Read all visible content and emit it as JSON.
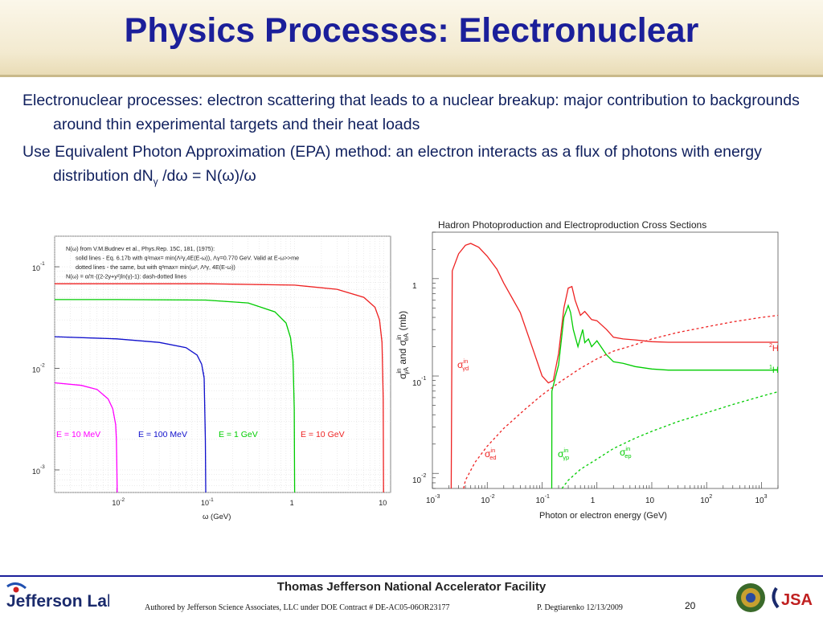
{
  "slide": {
    "title": "Physics Processes: Electronuclear",
    "bullets": [
      {
        "line1": "Electronuclear processes:  electron scattering that leads to a nuclear breakup: major contribution to backgrounds around thin experimental targets and their heat loads"
      },
      {
        "prefix": "Use Equivalent Photon Approximation (EPA) method: an electron interacts as a flux of photons with energy distribution dN",
        "sub": "γ",
        "suffix": " /dω = N(ω)/ω"
      }
    ]
  },
  "chart_data": [
    {
      "type": "line",
      "xlabel": "ω (GeV)",
      "x_log": true,
      "y_log": true,
      "xlim": [
        0.002,
        12
      ],
      "ylim": [
        0.0006,
        0.2
      ],
      "x_ticks": [
        {
          "value": 0.01,
          "base": "10",
          "exp": "-2"
        },
        {
          "value": 0.1,
          "base": "10",
          "exp": "-1"
        },
        {
          "value": 1,
          "base": "1",
          "exp": ""
        },
        {
          "value": 10,
          "base": "10",
          "exp": ""
        }
      ],
      "y_ticks": [
        {
          "value": 0.1,
          "base": "10",
          "exp": "-1"
        },
        {
          "value": 0.01,
          "base": "10",
          "exp": "-2"
        },
        {
          "value": 0.001,
          "base": "10",
          "exp": "-3"
        }
      ],
      "annotation_lines": [
        "N(ω) from V.M.Budnev et al., Phys.Rep. 15C, 181, (1975):",
        "solid lines    - Eq. 6.17b with q²max= min(Λ²γ,4E(E-ω)), Λγ=0.770 GeV. Valid at E-ω>>me",
        "dotted lines   - the same, but with q²max= min(ω², Λ²γ, 4E(E-ω))",
        "N(ω) = α/π·((2-2y+y²)ln(γ)-1): dash-dotted lines"
      ],
      "series": [
        {
          "name": "E = 10 MeV",
          "color": "#ff00ff",
          "level": 0.0075,
          "cutoff": 0.0095,
          "x": [
            0.002,
            0.004,
            0.006,
            0.008,
            0.009,
            0.0097,
            0.0099,
            0.01,
            0.0101
          ],
          "y": [
            0.0072,
            0.0068,
            0.0062,
            0.005,
            0.004,
            0.0028,
            0.002,
            0.0012,
            0.0006
          ]
        },
        {
          "name": "E = 100 MeV",
          "color": "#1010cc",
          "level": 0.0205,
          "cutoff": 0.098,
          "x": [
            0.002,
            0.01,
            0.03,
            0.06,
            0.08,
            0.09,
            0.096,
            0.099,
            0.1
          ],
          "y": [
            0.0205,
            0.0195,
            0.018,
            0.016,
            0.0135,
            0.011,
            0.008,
            0.002,
            0.0006
          ]
        },
        {
          "name": "E = 1 GeV",
          "color": "#00cc00",
          "level": 0.0475,
          "cutoff": 0.98,
          "x": [
            0.002,
            0.01,
            0.1,
            0.3,
            0.6,
            0.8,
            0.9,
            0.96,
            0.99,
            1.0
          ],
          "y": [
            0.0475,
            0.0475,
            0.047,
            0.044,
            0.036,
            0.028,
            0.02,
            0.012,
            0.004,
            0.0006
          ]
        },
        {
          "name": "E = 10 GeV",
          "color": "#ee2222",
          "level": 0.068,
          "cutoff": 9.8,
          "x": [
            0.002,
            0.01,
            0.1,
            1,
            3,
            6,
            8,
            9,
            9.6,
            9.9,
            10
          ],
          "y": [
            0.068,
            0.068,
            0.068,
            0.066,
            0.06,
            0.05,
            0.04,
            0.03,
            0.018,
            0.005,
            0.0006
          ]
        }
      ]
    },
    {
      "type": "line",
      "title": "Hadron Photoproduction and Electroproduction Cross Sections",
      "xlabel": "Photon or electron energy (GeV)",
      "ylabel": "σ^in_γA and σ^in_eA (mb)",
      "ylabel_parts": {
        "sigma1": "σ",
        "sup1": "in",
        "sub1": "γA",
        "and": " and ",
        "sigma2": "σ",
        "sup2": "in",
        "sub2": "eA",
        "unit": " (mb)"
      },
      "x_log": true,
      "y_log": true,
      "xlim": [
        0.001,
        2000
      ],
      "ylim": [
        0.007,
        3
      ],
      "x_ticks": [
        {
          "value": 0.001,
          "base": "10",
          "exp": "-3"
        },
        {
          "value": 0.01,
          "base": "10",
          "exp": "-2"
        },
        {
          "value": 0.1,
          "base": "10",
          "exp": "-1"
        },
        {
          "value": 1,
          "base": "1",
          "exp": ""
        },
        {
          "value": 10,
          "base": "10",
          "exp": ""
        },
        {
          "value": 100,
          "base": "10",
          "exp": "2"
        },
        {
          "value": 1000,
          "base": "10",
          "exp": "3"
        }
      ],
      "y_ticks": [
        {
          "value": 1,
          "base": "1",
          "exp": ""
        },
        {
          "value": 0.1,
          "base": "10",
          "exp": "-1"
        },
        {
          "value": 0.01,
          "base": "10",
          "exp": "-2"
        }
      ],
      "series_labels": [
        {
          "key": "gd",
          "sigma": "σ",
          "sup": "in",
          "sub": "γd",
          "color": "#ee2222"
        },
        {
          "key": "ed",
          "sigma": "σ",
          "sup": "in",
          "sub": "ed",
          "color": "#ee2222"
        },
        {
          "key": "gp",
          "sigma": "σ",
          "sup": "in",
          "sub": "γp",
          "color": "#00cc00"
        },
        {
          "key": "ep",
          "sigma": "σ",
          "sup": "in",
          "sub": "ep",
          "color": "#00cc00"
        }
      ],
      "end_labels": [
        {
          "key": "2H",
          "mass": "2",
          "symbol": "H",
          "color": "#ee2222"
        },
        {
          "key": "1H",
          "mass": "1",
          "symbol": "H",
          "color": "#00cc00"
        }
      ],
      "series": [
        {
          "key": "gamma_d",
          "color": "#ee2222",
          "style": "solid",
          "x": [
            0.0022,
            0.0023,
            0.003,
            0.004,
            0.005,
            0.007,
            0.01,
            0.015,
            0.02,
            0.04,
            0.07,
            0.1,
            0.13,
            0.16,
            0.2,
            0.25,
            0.3,
            0.35,
            0.4,
            0.5,
            0.6,
            0.8,
            1,
            1.5,
            2,
            3,
            5,
            10,
            20,
            50,
            200,
            1000,
            2000
          ],
          "y": [
            0.007,
            1.2,
            1.8,
            2.2,
            2.3,
            2.1,
            1.7,
            1.25,
            0.9,
            0.45,
            0.18,
            0.1,
            0.085,
            0.09,
            0.17,
            0.5,
            0.8,
            0.83,
            0.6,
            0.42,
            0.46,
            0.38,
            0.37,
            0.3,
            0.25,
            0.24,
            0.235,
            0.225,
            0.222,
            0.222,
            0.222,
            0.222,
            0.222
          ]
        },
        {
          "key": "gamma_p",
          "color": "#00cc00",
          "style": "solid",
          "x": [
            0.15,
            0.151,
            0.2,
            0.25,
            0.3,
            0.33,
            0.37,
            0.45,
            0.55,
            0.6,
            0.7,
            0.8,
            1,
            1.5,
            2,
            3,
            5,
            10,
            20,
            50,
            200,
            1000,
            2000
          ],
          "y": [
            0.007,
            0.07,
            0.13,
            0.4,
            0.53,
            0.45,
            0.3,
            0.2,
            0.3,
            0.22,
            0.24,
            0.2,
            0.23,
            0.165,
            0.14,
            0.135,
            0.125,
            0.118,
            0.115,
            0.115,
            0.115,
            0.115,
            0.115
          ]
        },
        {
          "key": "e_d",
          "color": "#ee2222",
          "style": "dotted",
          "x": [
            0.0037,
            0.004,
            0.006,
            0.01,
            0.02,
            0.05,
            0.1,
            0.2,
            0.5,
            1,
            2,
            5,
            10,
            30,
            100,
            300,
            1000,
            2000
          ],
          "y": [
            0.007,
            0.0085,
            0.013,
            0.019,
            0.029,
            0.046,
            0.064,
            0.085,
            0.12,
            0.15,
            0.18,
            0.21,
            0.24,
            0.28,
            0.32,
            0.36,
            0.4,
            0.42
          ]
        },
        {
          "key": "e_p",
          "color": "#00cc00",
          "style": "dotted",
          "x": [
            0.23,
            0.3,
            0.5,
            1,
            2,
            5,
            10,
            30,
            100,
            300,
            1000,
            2000
          ],
          "y": [
            0.007,
            0.0085,
            0.011,
            0.014,
            0.018,
            0.023,
            0.027,
            0.034,
            0.042,
            0.051,
            0.062,
            0.069
          ]
        }
      ]
    }
  ],
  "footer": {
    "title": "Thomas Jefferson National Accelerator Facility",
    "credit": "Authored by Jefferson Science Associates, LLC under DOE Contract #  DE-AC05-06OR23177",
    "author": "P. Degtiarenko 12/13/2009",
    "page_number": "20",
    "logo_left": "Jefferson Lab",
    "logo_right": "JSA"
  }
}
